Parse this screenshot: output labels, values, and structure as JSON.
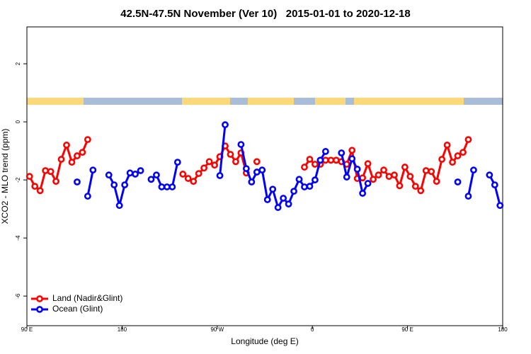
{
  "chart_data": {
    "type": "line",
    "title": "42.5N-47.5N November (Ver 10)   2015-01-01 to 2020-12-18",
    "xlabel": "Longitude (deg E)",
    "ylabel": "XCO2 - MLO trend (ppm)",
    "xlim": [
      90,
      540
    ],
    "ylim": [
      -7.02,
      3.27
    ],
    "xticks": [
      {
        "value": 90,
        "label": "90 E"
      },
      {
        "value": 180,
        "label": "180"
      },
      {
        "value": 270,
        "label": "90 W"
      },
      {
        "value": 360,
        "label": "0"
      },
      {
        "value": 450,
        "label": "90 E"
      },
      {
        "value": 540,
        "label": "180"
      }
    ],
    "yticks": [
      -6,
      -4,
      -2,
      0,
      2
    ],
    "legend": "bottomleft",
    "x": [
      92.5,
      97.5,
      102.5,
      107.5,
      112.5,
      117.5,
      122.5,
      127.5,
      132.5,
      137.5,
      142.5,
      147.5,
      152.5,
      157.5,
      162.5,
      167.5,
      172.5,
      177.5,
      182.5,
      187.5,
      192.5,
      197.5,
      202.5,
      207.5,
      212.5,
      217.5,
      222.5,
      227.5,
      232.5,
      237.5,
      242.5,
      247.5,
      252.5,
      257.5,
      262.5,
      267.5,
      272.5,
      277.5,
      282.5,
      287.5,
      292.5,
      297.5,
      302.5,
      307.5,
      312.5,
      317.5,
      322.5,
      327.5,
      332.5,
      337.5,
      342.5,
      347.5,
      352.5,
      357.5,
      362.5,
      367.5,
      372.5,
      377.5,
      382.5,
      387.5,
      392.5,
      397.5,
      402.5,
      407.5,
      412.5,
      417.5,
      422.5,
      427.5,
      432.5,
      437.5,
      442.5,
      447.5,
      452.5,
      457.5,
      462.5,
      467.5,
      472.5,
      477.5,
      482.5,
      487.5,
      492.5,
      497.5,
      502.5,
      507.5,
      512.5,
      517.5,
      522.5,
      527.5,
      532.5,
      537.5
    ],
    "series": [
      {
        "name": "Land (Nadir&Glint)",
        "color": "#ff0000",
        "values": [
          -1.88,
          -2.22,
          -2.37,
          -1.68,
          -1.71,
          -2.05,
          -1.29,
          -0.8,
          -1.39,
          -1.17,
          -1.05,
          -0.61,
          null,
          null,
          null,
          null,
          null,
          null,
          null,
          null,
          null,
          null,
          null,
          null,
          null,
          null,
          null,
          null,
          null,
          -1.8,
          -1.95,
          -2.05,
          -1.78,
          -1.59,
          -1.37,
          -1.49,
          -1.2,
          -0.83,
          -1.12,
          -1.37,
          -1.07,
          -1.76,
          null,
          -1.37,
          null,
          null,
          null,
          null,
          null,
          null,
          null,
          null,
          -1.56,
          -1.29,
          -1.46,
          -1.46,
          -1.32,
          -1.32,
          -1.32,
          -1.37,
          -1.46,
          -0.98,
          -1.95,
          -1.93,
          -1.44,
          -1.98,
          -1.83,
          -1.66,
          -1.88,
          -1.83,
          -2.2,
          -1.56,
          -1.88,
          -2.22,
          -2.37,
          -1.68,
          -1.71,
          -2.05,
          -1.29,
          -0.8,
          -1.39,
          -1.17,
          -1.05,
          -0.61,
          null,
          null,
          null,
          null,
          null,
          null
        ]
      },
      {
        "name": "Ocean (Glint)",
        "color": "#0000ff",
        "values": [
          null,
          null,
          null,
          null,
          null,
          null,
          null,
          null,
          null,
          -2.07,
          null,
          -2.56,
          -1.66,
          null,
          null,
          -1.83,
          -2.17,
          -2.88,
          -2.17,
          -1.76,
          -1.8,
          -1.68,
          null,
          -1.98,
          -1.83,
          -2.24,
          -2.24,
          -2.24,
          -1.39,
          null,
          null,
          null,
          null,
          null,
          null,
          null,
          -1.85,
          -0.1,
          null,
          null,
          -0.78,
          -1.61,
          -2.07,
          -1.73,
          -1.66,
          -2.68,
          -2.32,
          -2.95,
          -2.63,
          -2.83,
          -2.39,
          -1.98,
          -2.24,
          -2.22,
          -2.0,
          -1.32,
          -1.02,
          null,
          null,
          -1.07,
          -1.9,
          -1.27,
          -1.63,
          -2.46,
          -2.12,
          null,
          null,
          null,
          null,
          null,
          null,
          null,
          null,
          null,
          null,
          null,
          null,
          null,
          null,
          null,
          null,
          -2.07,
          null,
          -2.56,
          -1.66,
          null,
          null,
          -1.83,
          -2.17,
          -2.88
        ]
      }
    ]
  }
}
